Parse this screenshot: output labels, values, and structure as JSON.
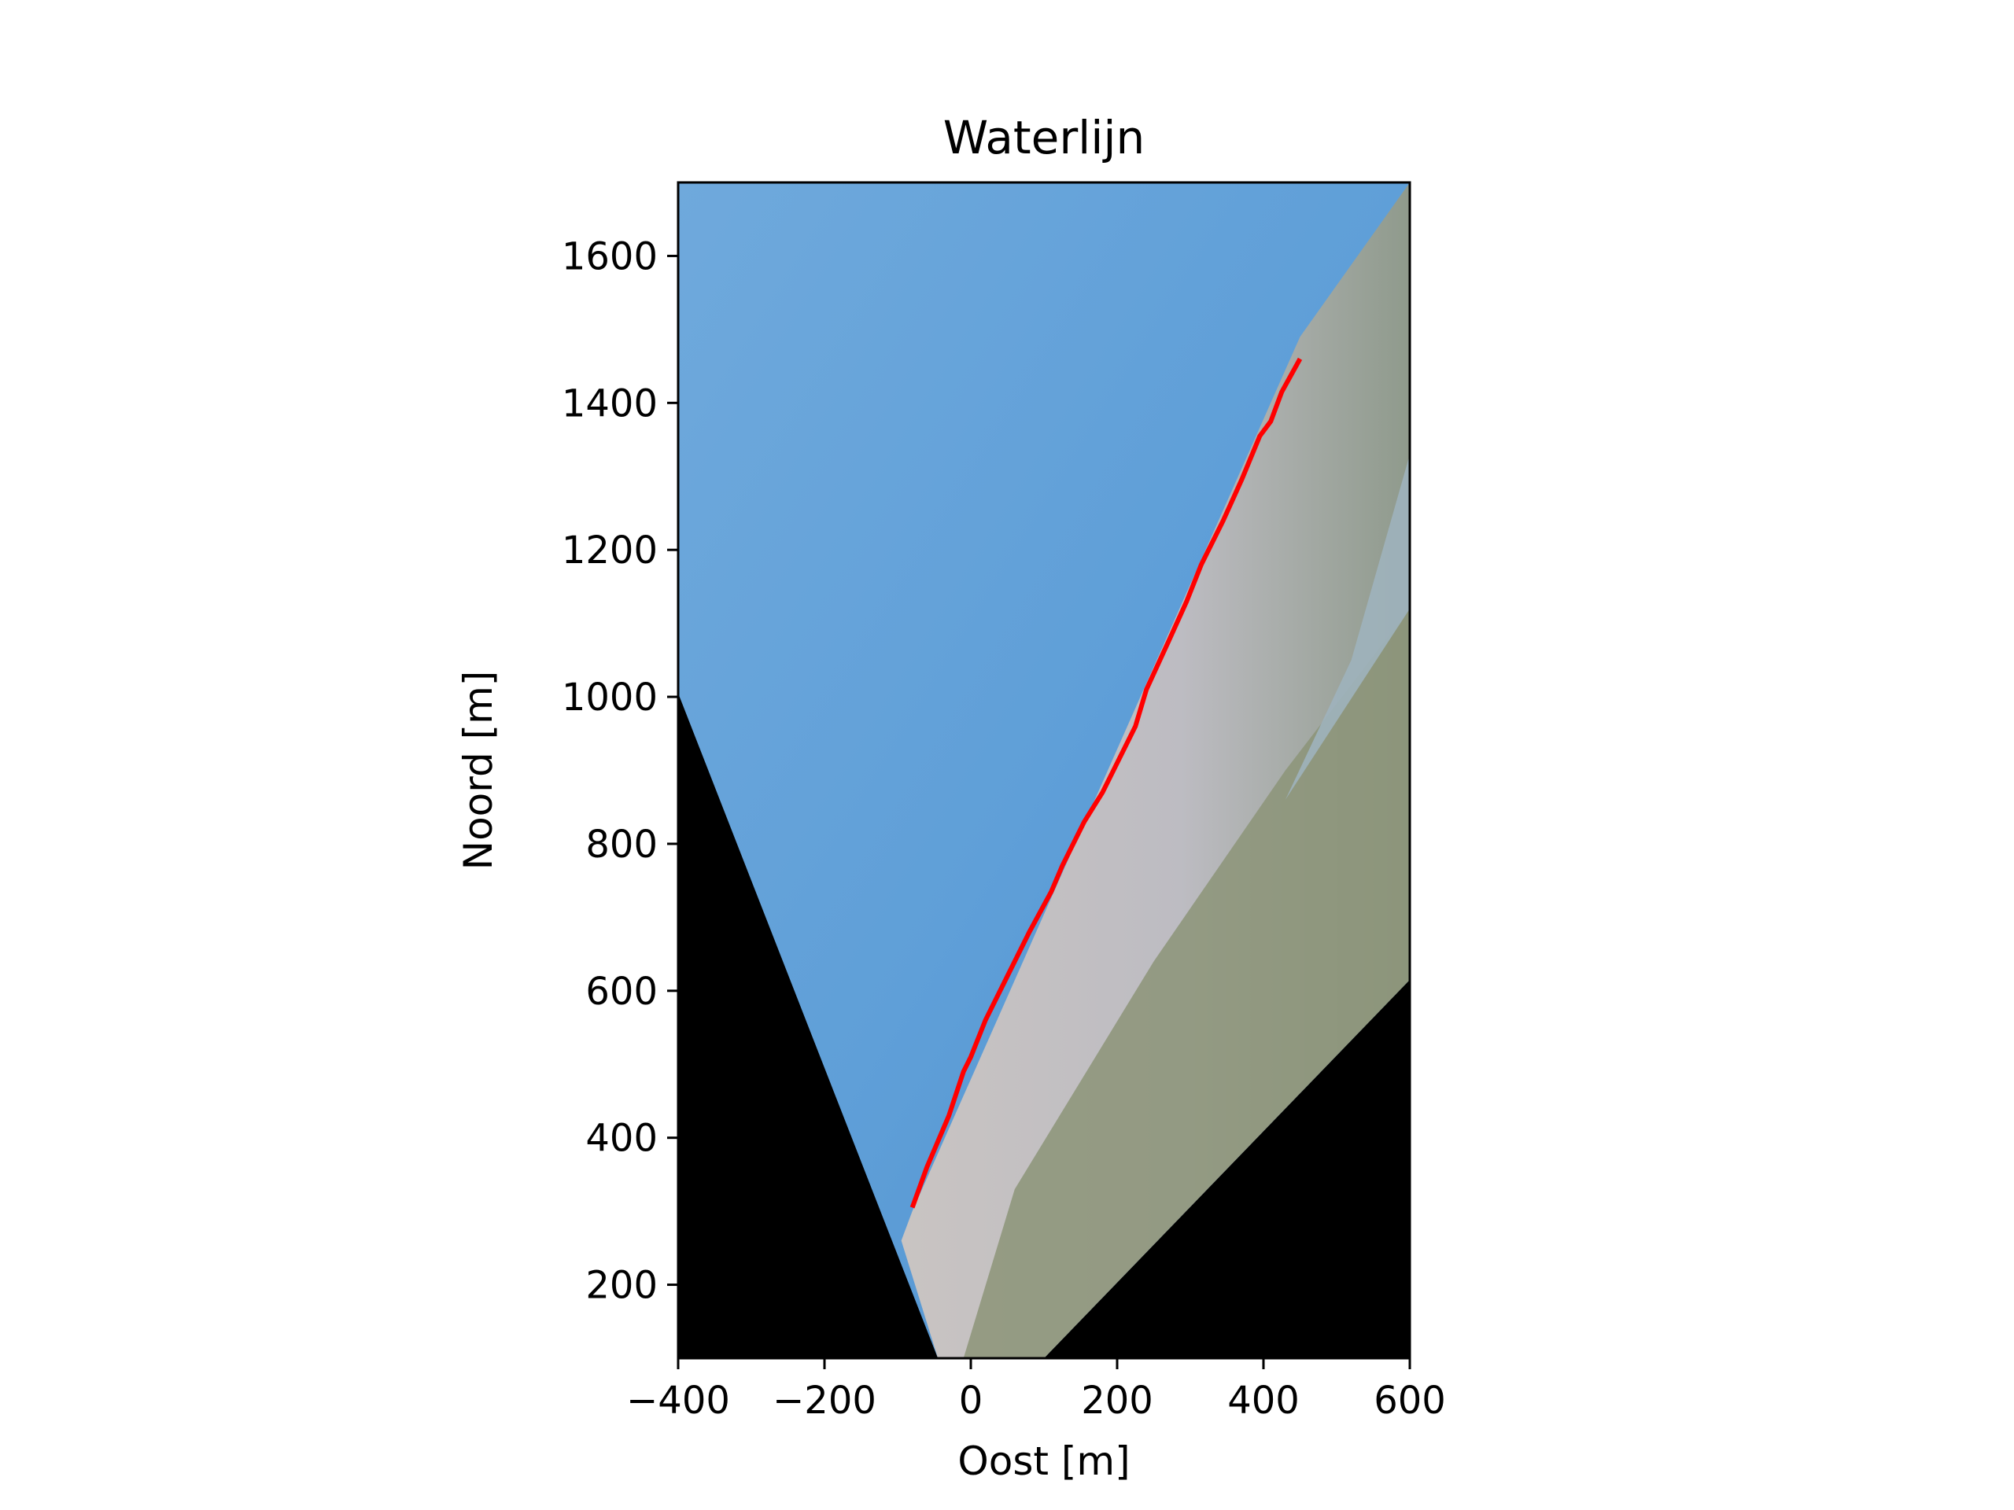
{
  "chart_data": {
    "type": "line",
    "title": "Waterlijn",
    "xlabel": "Oost [m]",
    "ylabel": "Noord [m]",
    "xlim": [
      -400,
      600
    ],
    "ylim": [
      100,
      1700
    ],
    "xticks": [
      -400,
      -200,
      0,
      200,
      400,
      600
    ],
    "xtick_labels": [
      "−400",
      "−200",
      "0",
      "200",
      "400",
      "600"
    ],
    "yticks": [
      200,
      400,
      600,
      800,
      1000,
      1200,
      1400,
      1600
    ],
    "ytick_labels": [
      "200",
      "400",
      "600",
      "800",
      "1000",
      "1200",
      "1400",
      "1600"
    ],
    "grid": false,
    "background": {
      "description_free": true,
      "footprint_corners": [
        [
          -400,
          1005
        ],
        [
          -400,
          1700
        ],
        [
          600,
          1700
        ],
        [
          600,
          615
        ],
        [
          100,
          100
        ],
        [
          -45,
          100
        ]
      ],
      "colors": {
        "sea": "#5f9fd8",
        "sea_light": "#8ab9e2",
        "beach": "#b9b6b9",
        "surf": "#9fb3bd",
        "dunes": "#8c9478",
        "dune_grass": "#5f8c55",
        "nodata": "#000000"
      }
    },
    "series": [
      {
        "color": "#ff0000",
        "x": [
          -80,
          -60,
          -30,
          -10,
          0,
          20,
          50,
          80,
          110,
          125,
          155,
          180,
          205,
          225,
          240,
          270,
          295,
          315,
          345,
          370,
          395,
          410,
          425,
          450
        ],
        "y": [
          305,
          360,
          430,
          490,
          510,
          560,
          620,
          680,
          735,
          770,
          830,
          870,
          920,
          960,
          1010,
          1075,
          1130,
          1180,
          1240,
          1295,
          1355,
          1375,
          1415,
          1460
        ]
      }
    ]
  }
}
